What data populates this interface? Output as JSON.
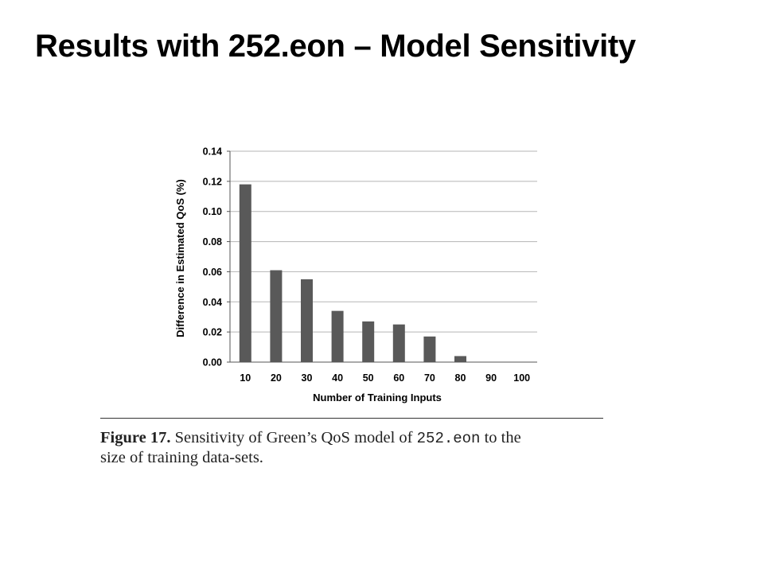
{
  "slide": {
    "title": "Results with 252.eon – Model Sensitivity"
  },
  "figure": {
    "label": "Figure 17.",
    "caption_part1": " Sensitivity of Green’s QoS model of ",
    "caption_code": "252.eon",
    "caption_part2": " to the",
    "caption_line2": "size of training data-sets."
  },
  "chart_data": {
    "type": "bar",
    "title": "",
    "xlabel": "Number of Training Inputs",
    "ylabel": "Difference in Estimated QoS (%)",
    "categories": [
      "10",
      "20",
      "30",
      "40",
      "50",
      "60",
      "70",
      "80",
      "90",
      "100"
    ],
    "values": [
      0.118,
      0.061,
      0.055,
      0.034,
      0.027,
      0.025,
      0.017,
      0.004,
      0.0,
      0.0
    ],
    "ylim": [
      0,
      0.14
    ],
    "yticks": [
      "0.00",
      "0.02",
      "0.04",
      "0.06",
      "0.08",
      "0.10",
      "0.12",
      "0.14"
    ],
    "grid": true,
    "legend": "none",
    "bar_color": "#595959"
  }
}
